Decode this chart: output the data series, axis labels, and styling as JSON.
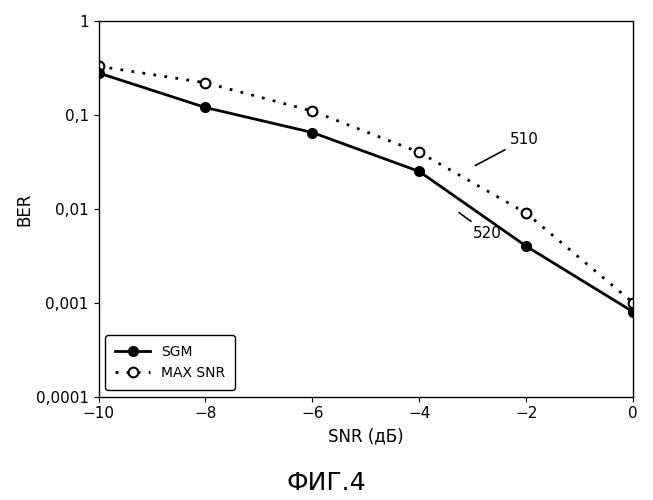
{
  "sgm_x": [
    -10,
    -8,
    -6,
    -4,
    -2,
    0
  ],
  "sgm_y": [
    0.28,
    0.12,
    0.065,
    0.025,
    0.004,
    0.0008
  ],
  "maxsnr_x": [
    -10,
    -8,
    -6,
    -4,
    -2,
    0
  ],
  "maxsnr_y": [
    0.33,
    0.22,
    0.11,
    0.04,
    0.009,
    0.001
  ],
  "xlim": [
    -10,
    0
  ],
  "ylim": [
    0.0001,
    1
  ],
  "xlabel": "SNR (дБ)",
  "ylabel": "BER",
  "legend_sgm": "SGM",
  "legend_maxsnr": "MAX SNR",
  "label_510": "510",
  "label_520": "520",
  "bg_color": "#ffffff",
  "line_color": "#000000",
  "fig_title": "ФИГ.4"
}
